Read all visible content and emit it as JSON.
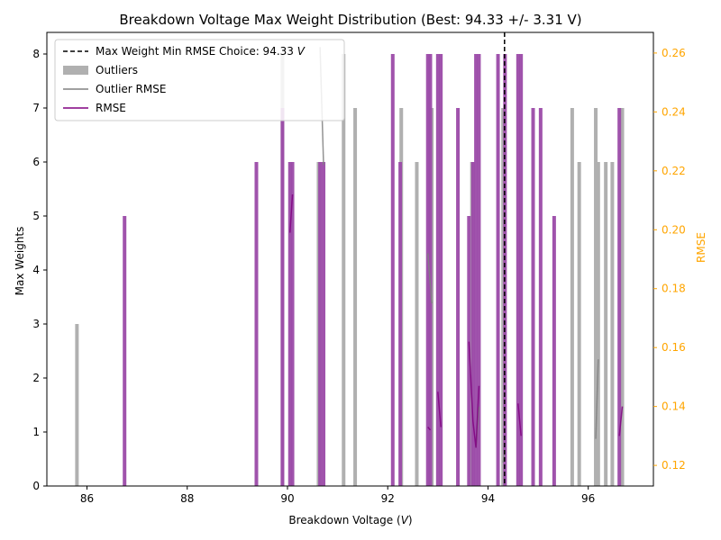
{
  "chart_data": {
    "type": "bar",
    "title": "Breakdown Voltage Max Weight Distribution (Best: 94.33 +/- 3.31 V)",
    "xlabel": "Breakdown Voltage (",
    "xlabel_unit": "V",
    "xlabel_close": ")",
    "ylabel": "Max Weights",
    "y2label": "RMSE",
    "xlim": [
      85.2,
      97.3
    ],
    "ylim": [
      0,
      8.4
    ],
    "y2lim": [
      0.113,
      0.267
    ],
    "xticks": [
      86,
      88,
      90,
      92,
      94,
      96
    ],
    "yticks": [
      0,
      1,
      2,
      3,
      4,
      5,
      6,
      7,
      8
    ],
    "y2ticks": [
      0.12,
      0.14,
      0.16,
      0.18,
      0.2,
      0.22,
      0.24,
      0.26
    ],
    "grid": false,
    "legend_position": "top-left",
    "colors": {
      "outliers": "#b0b0b0",
      "bars": "#9b4aa8",
      "rmse_line": "#800080",
      "outlier_rmse_line": "#808080",
      "best_line": "#000000",
      "y2_axis": "#ffa500"
    },
    "best_choice": 94.33,
    "legend": [
      {
        "label": "Max Weight Min RMSE Choice: 94.33 ",
        "unit": "V",
        "kind": "dashed"
      },
      {
        "label": "Outliers",
        "kind": "patch"
      },
      {
        "label": "Outlier RMSE",
        "kind": "line-gray"
      },
      {
        "label": "RMSE",
        "kind": "line-purple"
      }
    ],
    "bars": [
      {
        "x": 86.75,
        "value": 5
      },
      {
        "x": 89.38,
        "value": 6
      },
      {
        "x": 89.9,
        "value": 7
      },
      {
        "x": 90.05,
        "value": 6
      },
      {
        "x": 90.1,
        "value": 6
      },
      {
        "x": 90.65,
        "value": 6
      },
      {
        "x": 90.72,
        "value": 6
      },
      {
        "x": 92.1,
        "value": 8
      },
      {
        "x": 92.25,
        "value": 6
      },
      {
        "x": 92.8,
        "value": 8
      },
      {
        "x": 92.85,
        "value": 8
      },
      {
        "x": 93.0,
        "value": 8
      },
      {
        "x": 93.06,
        "value": 8
      },
      {
        "x": 93.4,
        "value": 7
      },
      {
        "x": 93.62,
        "value": 5
      },
      {
        "x": 93.7,
        "value": 6
      },
      {
        "x": 93.76,
        "value": 8
      },
      {
        "x": 93.82,
        "value": 8
      },
      {
        "x": 94.2,
        "value": 8
      },
      {
        "x": 94.34,
        "value": 8
      },
      {
        "x": 94.6,
        "value": 8
      },
      {
        "x": 94.66,
        "value": 8
      },
      {
        "x": 94.9,
        "value": 7
      },
      {
        "x": 95.05,
        "value": 7
      },
      {
        "x": 95.32,
        "value": 5
      },
      {
        "x": 96.62,
        "value": 7
      }
    ],
    "outliers": [
      {
        "x": 85.8,
        "value": 3
      },
      {
        "x": 89.9,
        "value": 8
      },
      {
        "x": 90.62,
        "value": 6
      },
      {
        "x": 91.12,
        "value": 8
      },
      {
        "x": 91.35,
        "value": 7
      },
      {
        "x": 92.27,
        "value": 7
      },
      {
        "x": 92.58,
        "value": 6
      },
      {
        "x": 92.88,
        "value": 7
      },
      {
        "x": 93.68,
        "value": 6
      },
      {
        "x": 94.3,
        "value": 7
      },
      {
        "x": 95.68,
        "value": 7
      },
      {
        "x": 95.82,
        "value": 6
      },
      {
        "x": 96.15,
        "value": 7
      },
      {
        "x": 96.2,
        "value": 6
      },
      {
        "x": 96.35,
        "value": 6
      },
      {
        "x": 96.48,
        "value": 6
      },
      {
        "x": 96.68,
        "value": 7
      }
    ],
    "rmse": [
      {
        "x": [
          90.05,
          90.1
        ],
        "y": [
          0.199,
          0.212
        ]
      },
      {
        "x": [
          92.8,
          92.85
        ],
        "y": [
          0.133,
          0.132
        ]
      },
      {
        "x": [
          93.0,
          93.06
        ],
        "y": [
          0.145,
          0.133
        ]
      },
      {
        "x": [
          93.62,
          93.7,
          93.76,
          93.82
        ],
        "y": [
          0.162,
          0.135,
          0.126,
          0.147
        ]
      },
      {
        "x": [
          94.6,
          94.66
        ],
        "y": [
          0.141,
          0.13
        ]
      },
      {
        "x": [
          96.62,
          96.68
        ],
        "y": [
          0.13,
          0.14
        ]
      }
    ],
    "outlier_rmse": [
      {
        "x": [
          90.65,
          90.72
        ],
        "y": [
          0.262,
          0.222
        ]
      },
      {
        "x": [
          92.8,
          92.88
        ],
        "y": [
          0.192,
          0.175
        ]
      },
      {
        "x": [
          93.76,
          93.82
        ],
        "y": [
          0.126,
          0.14
        ]
      },
      {
        "x": [
          94.3,
          94.34
        ],
        "y": [
          0.121,
          0.125
        ]
      },
      {
        "x": [
          96.15,
          96.2
        ],
        "y": [
          0.129,
          0.156
        ]
      }
    ]
  }
}
